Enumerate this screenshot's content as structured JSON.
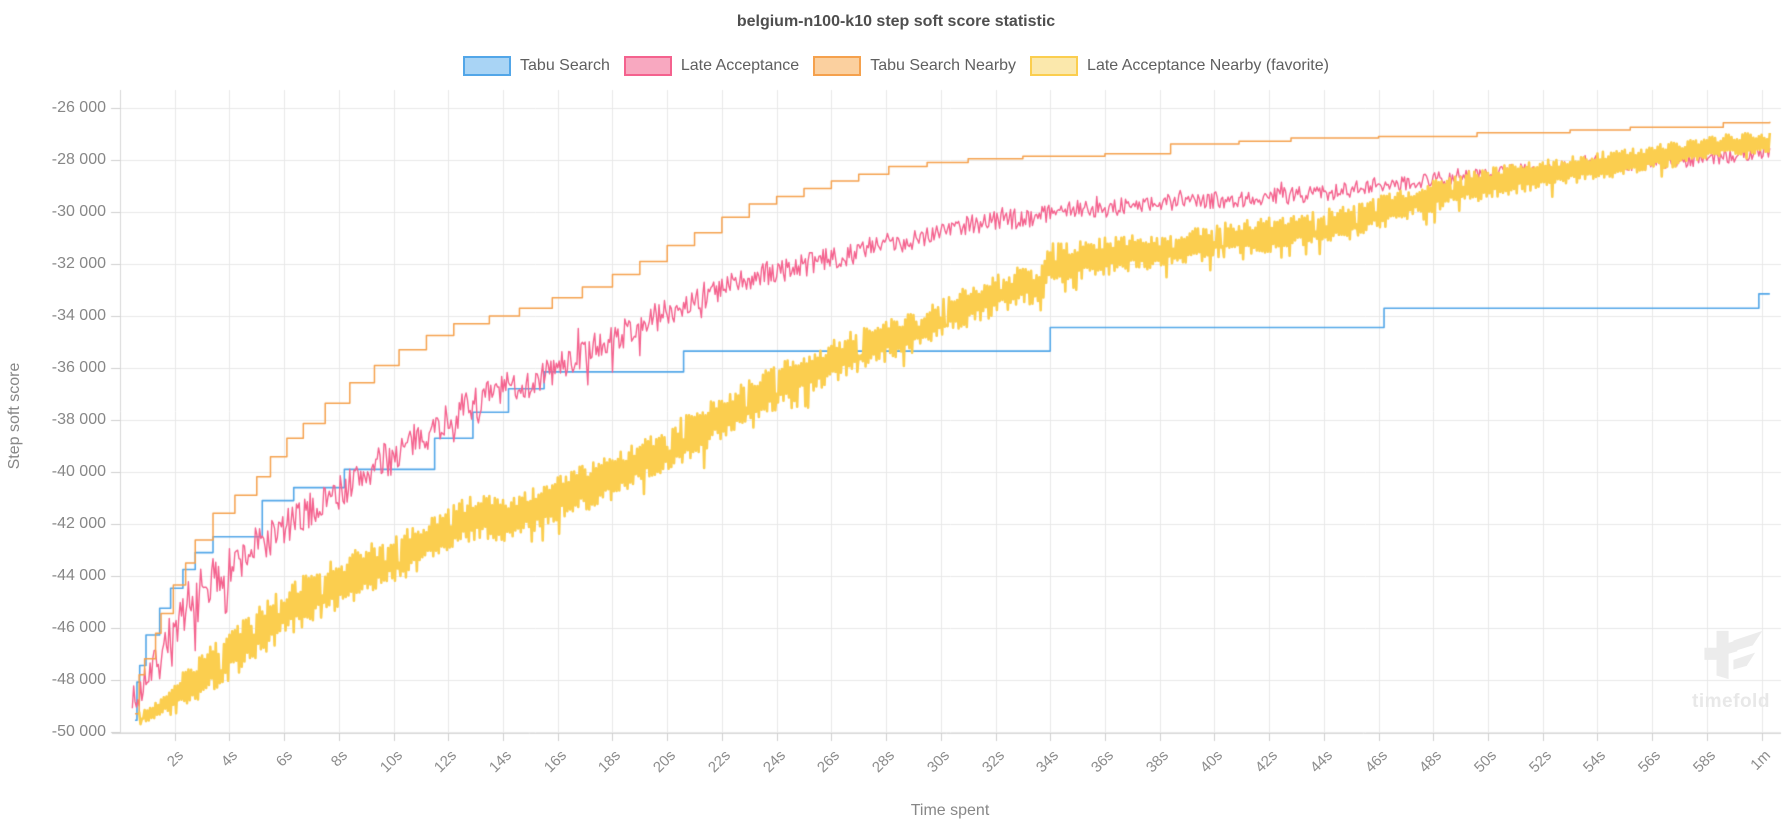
{
  "watermark": {
    "text": "timefold"
  },
  "chart_data": {
    "type": "line",
    "title": "belgium-n100-k10 step soft score statistic",
    "xlabel": "Time spent",
    "ylabel": "Step soft score",
    "x_range_seconds": [
      0,
      60.3
    ],
    "ylim": [
      -50000,
      -26000
    ],
    "grid": true,
    "legend_position": "top",
    "colors": {
      "grid": "#e8e8e8",
      "axis": "#d7d7d7",
      "tick": "#cfcfcf",
      "tick_text": "#8c8c8c",
      "title_text": "#4f4f4f",
      "legend_text": "#5f5f5f"
    },
    "x_ticks": [
      {
        "t": 2,
        "label": "2s"
      },
      {
        "t": 4,
        "label": "4s"
      },
      {
        "t": 6,
        "label": "6s"
      },
      {
        "t": 8,
        "label": "8s"
      },
      {
        "t": 10,
        "label": "10s"
      },
      {
        "t": 12,
        "label": "12s"
      },
      {
        "t": 14,
        "label": "14s"
      },
      {
        "t": 16,
        "label": "16s"
      },
      {
        "t": 18,
        "label": "18s"
      },
      {
        "t": 20,
        "label": "20s"
      },
      {
        "t": 22,
        "label": "22s"
      },
      {
        "t": 24,
        "label": "24s"
      },
      {
        "t": 26,
        "label": "26s"
      },
      {
        "t": 28,
        "label": "28s"
      },
      {
        "t": 30,
        "label": "30s"
      },
      {
        "t": 32,
        "label": "32s"
      },
      {
        "t": 34,
        "label": "34s"
      },
      {
        "t": 36,
        "label": "36s"
      },
      {
        "t": 38,
        "label": "38s"
      },
      {
        "t": 40,
        "label": "40s"
      },
      {
        "t": 42,
        "label": "42s"
      },
      {
        "t": 44,
        "label": "44s"
      },
      {
        "t": 46,
        "label": "46s"
      },
      {
        "t": 48,
        "label": "48s"
      },
      {
        "t": 50,
        "label": "50s"
      },
      {
        "t": 52,
        "label": "52s"
      },
      {
        "t": 54,
        "label": "54s"
      },
      {
        "t": 56,
        "label": "56s"
      },
      {
        "t": 58,
        "label": "58s"
      },
      {
        "t": 60,
        "label": "1m"
      }
    ],
    "y_ticks": [
      {
        "v": -26000,
        "label": "-26 000"
      },
      {
        "v": -28000,
        "label": "-28 000"
      },
      {
        "v": -30000,
        "label": "-30 000"
      },
      {
        "v": -32000,
        "label": "-32 000"
      },
      {
        "v": -34000,
        "label": "-34 000"
      },
      {
        "v": -36000,
        "label": "-36 000"
      },
      {
        "v": -38000,
        "label": "-38 000"
      },
      {
        "v": -40000,
        "label": "-40 000"
      },
      {
        "v": -42000,
        "label": "-42 000"
      },
      {
        "v": -44000,
        "label": "-44 000"
      },
      {
        "v": -46000,
        "label": "-46 000"
      },
      {
        "v": -48000,
        "label": "-48 000"
      },
      {
        "v": -50000,
        "label": "-50 000"
      }
    ],
    "series": [
      {
        "name": "Tabu Search",
        "style": "step",
        "color": "#52a6e8",
        "fill": "#a9d4f5",
        "line_width": 1.6,
        "draw_order": 1,
        "points": [
          [
            0.55,
            -49550
          ],
          [
            0.62,
            -48080
          ],
          [
            0.72,
            -47440
          ],
          [
            0.95,
            -46270
          ],
          [
            1.45,
            -45240
          ],
          [
            1.85,
            -44470
          ],
          [
            2.3,
            -43750
          ],
          [
            2.75,
            -43100
          ],
          [
            3.4,
            -42490
          ],
          [
            5.2,
            -41100
          ],
          [
            6.35,
            -40600
          ],
          [
            8.2,
            -39900
          ],
          [
            11.5,
            -38700
          ],
          [
            12.9,
            -37700
          ],
          [
            14.2,
            -36800
          ],
          [
            15.5,
            -36150
          ],
          [
            20.6,
            -35350
          ],
          [
            34.0,
            -34440
          ],
          [
            46.2,
            -33700
          ],
          [
            59.9,
            -33150
          ],
          [
            60.3,
            -33150
          ]
        ]
      },
      {
        "name": "Late Acceptance",
        "style": "noisy",
        "color": "#f4628e",
        "fill": "#f8a8c0",
        "line_width": 1.4,
        "seed": 7,
        "draw_order": 2,
        "points": [
          [
            0.45,
            -48600,
            500
          ],
          [
            0.6,
            -49000,
            600
          ],
          [
            0.8,
            -48300,
            800
          ],
          [
            1,
            -47600,
            800
          ],
          [
            1.5,
            -46700,
            800
          ],
          [
            2,
            -46030,
            800
          ],
          [
            2.5,
            -45350,
            800
          ],
          [
            3,
            -44740,
            800
          ],
          [
            3.5,
            -44200,
            800
          ],
          [
            4,
            -43720,
            800
          ],
          [
            5,
            -42900,
            750
          ],
          [
            6,
            -42180,
            750
          ],
          [
            7,
            -41450,
            700
          ],
          [
            8,
            -40770,
            700
          ],
          [
            9,
            -40050,
            700
          ],
          [
            10,
            -39360,
            700
          ],
          [
            11,
            -38650,
            650
          ],
          [
            12,
            -37950,
            650
          ],
          [
            13,
            -37300,
            650
          ],
          [
            14,
            -36800,
            600
          ],
          [
            15,
            -36550,
            600
          ],
          [
            16,
            -36000,
            600
          ],
          [
            17,
            -35400,
            600
          ],
          [
            18,
            -34900,
            550
          ],
          [
            19,
            -34350,
            550
          ],
          [
            20,
            -33840,
            550
          ],
          [
            21,
            -33400,
            500
          ],
          [
            22,
            -33000,
            500
          ],
          [
            23,
            -32600,
            500
          ],
          [
            24,
            -32300,
            500
          ],
          [
            25,
            -32050,
            450
          ],
          [
            26,
            -31800,
            450
          ],
          [
            27,
            -31500,
            450
          ],
          [
            28,
            -31250,
            450
          ],
          [
            29,
            -31040,
            400
          ],
          [
            30,
            -30700,
            400
          ],
          [
            31,
            -30450,
            400
          ],
          [
            32,
            -30350,
            400
          ],
          [
            33,
            -30250,
            400
          ],
          [
            34,
            -30000,
            350
          ],
          [
            35,
            -29900,
            350
          ],
          [
            36,
            -29850,
            350
          ],
          [
            37,
            -29750,
            350
          ],
          [
            38,
            -29670,
            350
          ],
          [
            39,
            -29600,
            330
          ],
          [
            40,
            -29550,
            330
          ],
          [
            41,
            -29500,
            330
          ],
          [
            42,
            -29410,
            330
          ],
          [
            43,
            -29350,
            320
          ],
          [
            44,
            -29250,
            320
          ],
          [
            45,
            -29150,
            320
          ],
          [
            46,
            -28950,
            320
          ],
          [
            47,
            -28850,
            300
          ],
          [
            48,
            -28750,
            300
          ],
          [
            49,
            -28650,
            300
          ],
          [
            50,
            -28550,
            300
          ],
          [
            51,
            -28450,
            300
          ],
          [
            52,
            -28400,
            300
          ],
          [
            53,
            -28300,
            300
          ],
          [
            54,
            -28200,
            300
          ],
          [
            55,
            -28150,
            300
          ],
          [
            56,
            -28100,
            300
          ],
          [
            57,
            -28000,
            300
          ],
          [
            58,
            -27900,
            300
          ],
          [
            59,
            -27800,
            300
          ],
          [
            60.3,
            -27650,
            260
          ]
        ]
      },
      {
        "name": "Tabu Search Nearby",
        "style": "step",
        "color": "#f5a14d",
        "fill": "#fbd09f",
        "line_width": 1.5,
        "draw_order": 3,
        "points": [
          [
            0.55,
            -49300
          ],
          [
            0.7,
            -47800
          ],
          [
            0.9,
            -47180
          ],
          [
            1.3,
            -46200
          ],
          [
            1.5,
            -45440
          ],
          [
            1.95,
            -44350
          ],
          [
            2.4,
            -43500
          ],
          [
            2.75,
            -42620
          ],
          [
            3.4,
            -41590
          ],
          [
            4.2,
            -40890
          ],
          [
            5.0,
            -40180
          ],
          [
            5.5,
            -39410
          ],
          [
            6.1,
            -38700
          ],
          [
            6.7,
            -38130
          ],
          [
            7.5,
            -37360
          ],
          [
            8.4,
            -36570
          ],
          [
            9.3,
            -35900
          ],
          [
            10.2,
            -35300
          ],
          [
            11.2,
            -34750
          ],
          [
            12.2,
            -34300
          ],
          [
            13.5,
            -34000
          ],
          [
            14.6,
            -33700
          ],
          [
            15.8,
            -33300
          ],
          [
            16.9,
            -32880
          ],
          [
            18.0,
            -32400
          ],
          [
            19.0,
            -31900
          ],
          [
            20.0,
            -31290
          ],
          [
            21.0,
            -30800
          ],
          [
            22.0,
            -30200
          ],
          [
            23.0,
            -29690
          ],
          [
            24.0,
            -29400
          ],
          [
            25.0,
            -29100
          ],
          [
            26.0,
            -28810
          ],
          [
            27.0,
            -28550
          ],
          [
            28.1,
            -28250
          ],
          [
            29.5,
            -28100
          ],
          [
            31.0,
            -27950
          ],
          [
            33.0,
            -27860
          ],
          [
            36.0,
            -27760
          ],
          [
            38.4,
            -27380
          ],
          [
            40.9,
            -27280
          ],
          [
            42.8,
            -27150
          ],
          [
            46.0,
            -27100
          ],
          [
            49.6,
            -26950
          ],
          [
            53.0,
            -26850
          ],
          [
            55.2,
            -26740
          ],
          [
            58.6,
            -26570
          ],
          [
            60.3,
            -26530
          ]
        ]
      },
      {
        "name": "Late Acceptance Nearby (favorite)",
        "style": "noisy",
        "color": "#fbce4f",
        "fill": "#fbe8ac",
        "line_width": 2.6,
        "seed": 13,
        "draw_order": 4,
        "points": [
          [
            0.7,
            -49400,
            250
          ],
          [
            1.2,
            -49300,
            350
          ],
          [
            2,
            -48600,
            700
          ],
          [
            3,
            -47900,
            900
          ],
          [
            4,
            -47000,
            1000
          ],
          [
            5,
            -46200,
            1000
          ],
          [
            6,
            -45400,
            1000
          ],
          [
            7,
            -44800,
            1000
          ],
          [
            8,
            -44300,
            1000
          ],
          [
            9,
            -43800,
            1000
          ],
          [
            10,
            -43400,
            950
          ],
          [
            11,
            -42800,
            950
          ],
          [
            12,
            -42200,
            900
          ],
          [
            13,
            -41700,
            900
          ],
          [
            14,
            -41900,
            900
          ],
          [
            15,
            -41500,
            900
          ],
          [
            16,
            -41000,
            900
          ],
          [
            17,
            -40600,
            900
          ],
          [
            18,
            -40200,
            900
          ],
          [
            19,
            -39600,
            900
          ],
          [
            20,
            -39100,
            900
          ],
          [
            21,
            -38500,
            900
          ],
          [
            22,
            -37900,
            900
          ],
          [
            23,
            -37300,
            900
          ],
          [
            24,
            -36700,
            900
          ],
          [
            25,
            -36300,
            850
          ],
          [
            26,
            -35800,
            850
          ],
          [
            27,
            -35300,
            850
          ],
          [
            28,
            -34900,
            850
          ],
          [
            29,
            -34600,
            800
          ],
          [
            30,
            -34100,
            800
          ],
          [
            31,
            -33600,
            800
          ],
          [
            32,
            -33200,
            800
          ],
          [
            33,
            -32700,
            800
          ],
          [
            33.6,
            -33000,
            700
          ],
          [
            34,
            -32000,
            800
          ],
          [
            35,
            -31900,
            750
          ],
          [
            36,
            -31700,
            750
          ],
          [
            37,
            -31600,
            700
          ],
          [
            38,
            -31450,
            700
          ],
          [
            39,
            -31300,
            700
          ],
          [
            40,
            -31100,
            700
          ],
          [
            41,
            -31000,
            700
          ],
          [
            42,
            -30900,
            700
          ],
          [
            43,
            -30700,
            650
          ],
          [
            44,
            -30550,
            650
          ],
          [
            45,
            -30400,
            650
          ],
          [
            46,
            -30000,
            650
          ],
          [
            47,
            -29700,
            600
          ],
          [
            48,
            -29400,
            600
          ],
          [
            49,
            -29100,
            600
          ],
          [
            50,
            -28900,
            600
          ],
          [
            51,
            -28700,
            600
          ],
          [
            52,
            -28550,
            550
          ],
          [
            53,
            -28400,
            550
          ],
          [
            54,
            -28250,
            550
          ],
          [
            55,
            -28100,
            500
          ],
          [
            56,
            -27900,
            500
          ],
          [
            57,
            -27750,
            500
          ],
          [
            58,
            -27550,
            450
          ],
          [
            59,
            -27400,
            420
          ],
          [
            60.3,
            -27350,
            400
          ]
        ]
      }
    ]
  }
}
